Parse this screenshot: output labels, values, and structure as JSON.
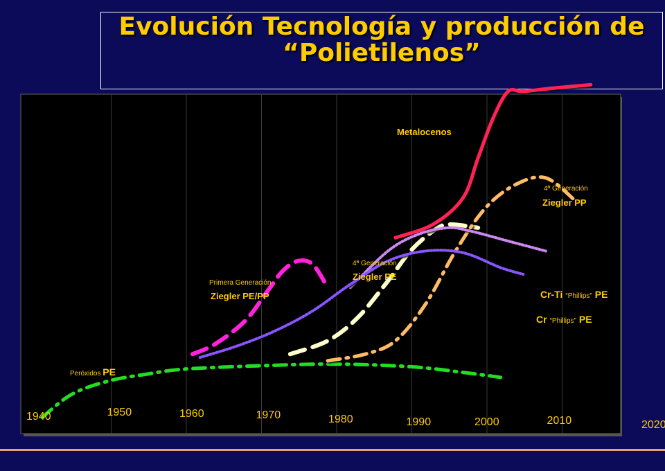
{
  "title": {
    "line1": "Evolución Tecnología y producción de",
    "line2": "“Polietilenos”"
  },
  "colors": {
    "background": "#0b0b5a",
    "title": "#ffcc00",
    "plot_background": "#000000",
    "grid": "#3a3a3a",
    "label": "#ffcc00"
  },
  "chart_data": {
    "type": "line",
    "title": "Evolución Tecnología y producción de “Polietilenos”",
    "xlabel": "",
    "ylabel": "",
    "x_ticks": [
      "1940",
      "1950",
      "1960",
      "1970",
      "1980",
      "1990",
      "2000",
      "2010",
      "2020"
    ],
    "xlim": [
      1940,
      2020
    ],
    "ylim": [
      0,
      100
    ],
    "grid": true,
    "series": [
      {
        "name": "Peróxidos PE",
        "color": "#22dd22",
        "style": "dash-dot",
        "x": [
          1941,
          1945,
          1950,
          1955,
          1960,
          1970,
          1980,
          1990,
          1997,
          2002
        ],
        "y": [
          2,
          9,
          13,
          15,
          16.5,
          17.5,
          18,
          17.2,
          15.5,
          14
        ]
      },
      {
        "name": "Ziegler PE/PP",
        "color": "#ff22dd",
        "style": "dashed",
        "x": [
          1961,
          1964,
          1968,
          1971,
          1973,
          1975,
          1977,
          1979
        ],
        "y": [
          21,
          24,
          31,
          40,
          46,
          49,
          48,
          41
        ]
      },
      {
        "name": "Ziegler PE",
        "color": "#ffffcc",
        "style": "dashed",
        "x": [
          1974,
          1979,
          1983,
          1987,
          1990,
          1993,
          1995,
          1999
        ],
        "y": [
          21,
          25,
          32,
          43,
          52,
          58,
          60,
          59
        ]
      },
      {
        "name": "Ziegler PP",
        "color": "#ffbb66",
        "style": "dash-dot",
        "x": [
          1979,
          1984,
          1988,
          1992,
          1996,
          2000,
          2004,
          2008,
          2012
        ],
        "y": [
          19,
          21,
          25,
          36,
          52,
          65,
          72,
          74,
          67
        ]
      },
      {
        "name": "Metalocenos",
        "color": "#ff2255",
        "style": "solid",
        "x": [
          1988,
          1993,
          1997,
          1999,
          2001,
          2003,
          2005,
          2009,
          2014
        ],
        "y": [
          56,
          60,
          68,
          80,
          92,
          100,
          100,
          101,
          102
        ]
      },
      {
        "name": "Cr-Ti “Phillips” PE",
        "color": "#cc88ee",
        "style": "dotted",
        "x": [
          1982,
          1987,
          1991,
          1995,
          1998,
          2003,
          2008
        ],
        "y": [
          41,
          52,
          57,
          59,
          58,
          55,
          52
        ]
      },
      {
        "name": "Cr “Phillips” PE",
        "color": "#8855ff",
        "style": "dotted",
        "x": [
          1962,
          1967,
          1972,
          1977,
          1982,
          1987,
          1992,
          1997,
          2002,
          2005
        ],
        "y": [
          20,
          23.5,
          28,
          34,
          42,
          49,
          52,
          51.5,
          47,
          45
        ]
      }
    ],
    "annotations": [
      {
        "id": "peroxidos",
        "small": "Peróxidos ",
        "big": "PE"
      },
      {
        "id": "primera",
        "small": "Primera Generación",
        "big": "Ziegler PE/PP"
      },
      {
        "id": "cuarta_pe",
        "small": "4ª Generación",
        "big": "Ziegler PE"
      },
      {
        "id": "cuarta_pp",
        "small": "4ª Generación",
        "big": "Ziegler PP"
      },
      {
        "id": "metalocenos",
        "small": "",
        "big": "Metalocenos"
      },
      {
        "id": "crti",
        "small": "“Phillips”",
        "big_pre": "Cr-Ti",
        "big_post": "PE"
      },
      {
        "id": "cr",
        "small": "“Phillips”",
        "big_pre": "Cr",
        "big_post": "PE"
      }
    ]
  }
}
